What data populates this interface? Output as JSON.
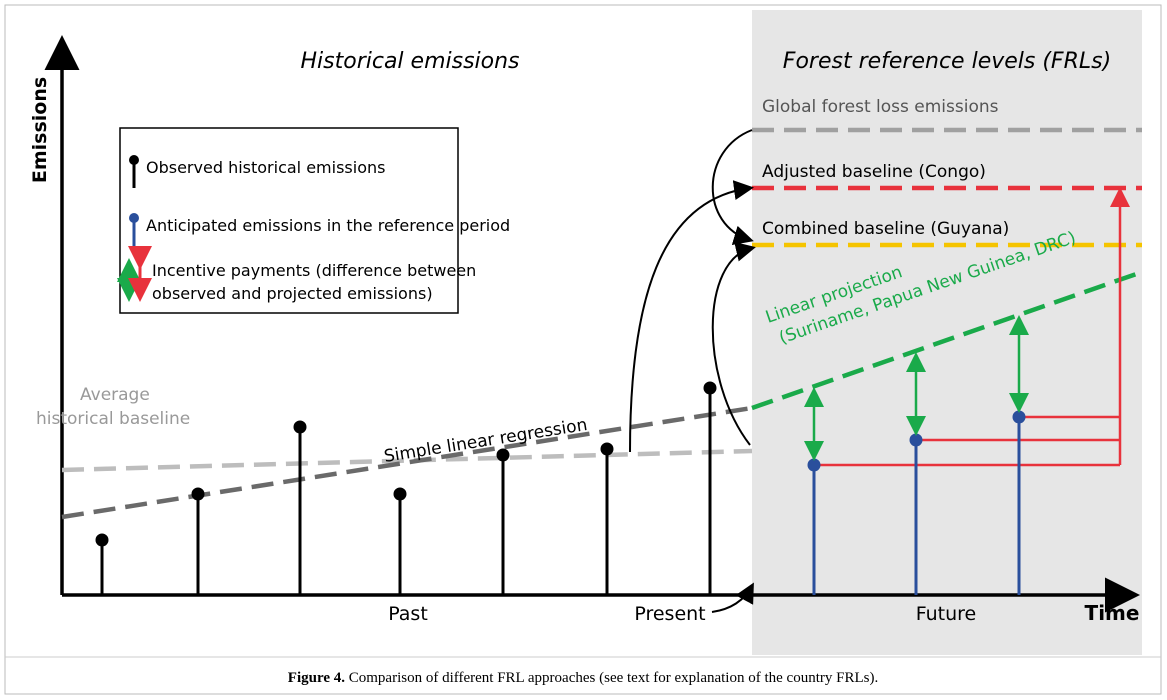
{
  "titles": {
    "left": "Historical emissions",
    "right": "Forest reference levels (FRLs)"
  },
  "axes": {
    "y": "Emissions",
    "x": "Time",
    "periods": [
      "Past",
      "Present",
      "Future"
    ]
  },
  "legend": {
    "items": [
      {
        "lines": [
          "Observed historical emissions"
        ]
      },
      {
        "lines": [
          "Anticipated emissions in the reference period"
        ]
      },
      {
        "lines": [
          "Incentive payments (difference between",
          "observed and projected emissions)"
        ]
      }
    ]
  },
  "baselines": {
    "global": "Global forest loss emissions",
    "adjusted": "Adjusted baseline (Congo)",
    "combined": "Combined baseline (Guyana)",
    "linear": [
      "Linear projection",
      "(Suriname, Papua New Guinea, DRC)"
    ],
    "average": [
      "Average",
      "historical baseline"
    ],
    "regression": "Simple linear regression"
  },
  "caption": {
    "label": "Figure 4.",
    "text": " Comparison of different FRL approaches (see text for explanation of the country FRLs)."
  }
}
